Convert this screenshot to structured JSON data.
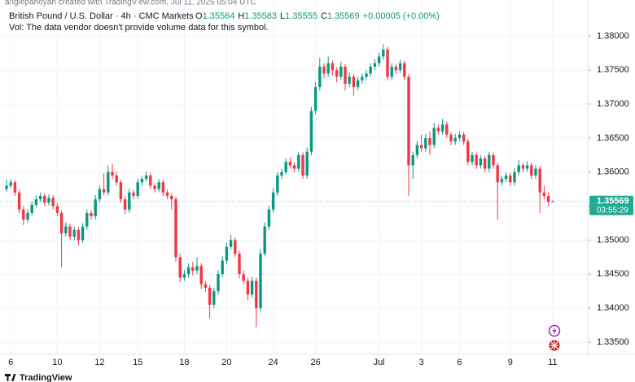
{
  "chart_data": {
    "type": "candlestick",
    "attribution": "anglepanoyan created with TradingView.com, Jul 11, 2025 05:04 UTC",
    "title": "British Pound / U.S. Dollar · 4h · CMC Markets",
    "legend": {
      "items": [
        {
          "key": "O",
          "value": "1.35564"
        },
        {
          "key": "H",
          "value": "1.35583"
        },
        {
          "key": "L",
          "value": "1.35555"
        },
        {
          "key": "C",
          "value": "1.35569"
        }
      ],
      "change": "+0.00005 (+0.00%)"
    },
    "volume_note": "Vol: The data vendor doesn't provide volume data for this symbol.",
    "brand": "TradingView",
    "up_color": "#089981",
    "down_color": "#f23645",
    "last_price": {
      "value": 1.35569,
      "label": "1.35569",
      "countdown": "03:55:29",
      "color": "#22ab94"
    },
    "ylim": [
      1.3332,
      1.3853
    ],
    "yticks": [
      {
        "value": 1.335,
        "label": "1.33500"
      },
      {
        "value": 1.34,
        "label": "1.34000"
      },
      {
        "value": 1.345,
        "label": "1.34500"
      },
      {
        "value": 1.35,
        "label": "1.35000"
      },
      {
        "value": 1.355,
        "label": "1.35500"
      },
      {
        "value": 1.36,
        "label": "1.36000"
      },
      {
        "value": 1.365,
        "label": "1.36500"
      },
      {
        "value": 1.37,
        "label": "1.37000"
      },
      {
        "value": 1.375,
        "label": "1.37500"
      },
      {
        "value": 1.38,
        "label": "1.38000"
      }
    ],
    "grid": true,
    "categories": [
      null,
      "6",
      null,
      null,
      null,
      null,
      null,
      null,
      null,
      null,
      null,
      null,
      "10",
      null,
      null,
      null,
      null,
      null,
      null,
      null,
      null,
      null,
      "12",
      null,
      null,
      null,
      null,
      null,
      null,
      null,
      null,
      "15",
      null,
      null,
      null,
      null,
      null,
      null,
      null,
      null,
      null,
      null,
      "18",
      null,
      null,
      null,
      null,
      null,
      null,
      null,
      null,
      null,
      "20",
      null,
      null,
      null,
      null,
      null,
      null,
      null,
      null,
      null,
      null,
      "24",
      null,
      null,
      null,
      null,
      null,
      null,
      null,
      null,
      null,
      "26",
      null,
      null,
      null,
      null,
      null,
      null,
      null,
      null,
      null,
      null,
      null,
      null,
      null,
      null,
      "Jul",
      null,
      null,
      null,
      null,
      null,
      null,
      null,
      null,
      null,
      "3",
      null,
      null,
      null,
      null,
      null,
      null,
      null,
      null,
      "6",
      null,
      null,
      null,
      null,
      null,
      null,
      null,
      null,
      null,
      null,
      null,
      "9",
      null,
      null,
      null,
      null,
      null,
      null,
      null,
      null,
      null,
      "11"
    ],
    "ohlc": [
      [
        1.3575,
        1.3589,
        1.3571,
        1.358
      ],
      [
        1.358,
        1.359,
        1.3576,
        1.3585
      ],
      [
        1.3585,
        1.3588,
        1.3565,
        1.357
      ],
      [
        1.357,
        1.3574,
        1.354,
        1.3545
      ],
      [
        1.3545,
        1.355,
        1.3522,
        1.353
      ],
      [
        1.353,
        1.3545,
        1.3526,
        1.354
      ],
      [
        1.354,
        1.3557,
        1.3536,
        1.3552
      ],
      [
        1.3552,
        1.3566,
        1.3548,
        1.356
      ],
      [
        1.356,
        1.357,
        1.3556,
        1.3565
      ],
      [
        1.3565,
        1.3569,
        1.355,
        1.3555
      ],
      [
        1.3555,
        1.3567,
        1.3551,
        1.3562
      ],
      [
        1.3562,
        1.3566,
        1.3545,
        1.355
      ],
      [
        1.355,
        1.3554,
        1.3535,
        1.354
      ],
      [
        1.354,
        1.3544,
        1.346,
        1.351
      ],
      [
        1.351,
        1.3526,
        1.3505,
        1.352
      ],
      [
        1.352,
        1.3524,
        1.35,
        1.3505
      ],
      [
        1.3505,
        1.352,
        1.35,
        1.3515
      ],
      [
        1.3515,
        1.3519,
        1.3492,
        1.35
      ],
      [
        1.35,
        1.3525,
        1.3496,
        1.352
      ],
      [
        1.352,
        1.3545,
        1.3515,
        1.354
      ],
      [
        1.354,
        1.3544,
        1.353,
        1.3535
      ],
      [
        1.3535,
        1.3566,
        1.353,
        1.356
      ],
      [
        1.356,
        1.358,
        1.3556,
        1.3575
      ],
      [
        1.3575,
        1.3598,
        1.3566,
        1.357
      ],
      [
        1.357,
        1.361,
        1.3566,
        1.36
      ],
      [
        1.36,
        1.3612,
        1.359,
        1.3595
      ],
      [
        1.3595,
        1.36,
        1.358,
        1.3585
      ],
      [
        1.3585,
        1.3589,
        1.3555,
        1.356
      ],
      [
        1.356,
        1.3565,
        1.3538,
        1.3545
      ],
      [
        1.3545,
        1.3576,
        1.354,
        1.357
      ],
      [
        1.357,
        1.3574,
        1.356,
        1.3565
      ],
      [
        1.3565,
        1.359,
        1.3561,
        1.3585
      ],
      [
        1.3585,
        1.3595,
        1.358,
        1.359
      ],
      [
        1.359,
        1.3601,
        1.3586,
        1.3595
      ],
      [
        1.3595,
        1.3599,
        1.3575,
        1.358
      ],
      [
        1.358,
        1.3584,
        1.357,
        1.3575
      ],
      [
        1.3575,
        1.359,
        1.3571,
        1.3585
      ],
      [
        1.3585,
        1.3589,
        1.3565,
        1.357
      ],
      [
        1.357,
        1.3574,
        1.356,
        1.3565
      ],
      [
        1.3565,
        1.3569,
        1.3545,
        1.356
      ],
      [
        1.356,
        1.3564,
        1.3468,
        1.3475
      ],
      [
        1.3475,
        1.348,
        1.3438,
        1.3445
      ],
      [
        1.3445,
        1.3456,
        1.344,
        1.345
      ],
      [
        1.345,
        1.3466,
        1.3445,
        1.346
      ],
      [
        1.346,
        1.3468,
        1.3448,
        1.3455
      ],
      [
        1.3455,
        1.3475,
        1.345,
        1.3462
      ],
      [
        1.3462,
        1.3466,
        1.3428,
        1.3435
      ],
      [
        1.3435,
        1.344,
        1.3424,
        1.343
      ],
      [
        1.343,
        1.3434,
        1.3385,
        1.3405
      ],
      [
        1.3405,
        1.343,
        1.34,
        1.3425
      ],
      [
        1.3425,
        1.3456,
        1.342,
        1.345
      ],
      [
        1.345,
        1.3476,
        1.3446,
        1.347
      ],
      [
        1.347,
        1.3496,
        1.3465,
        1.349
      ],
      [
        1.349,
        1.3508,
        1.3486,
        1.35
      ],
      [
        1.35,
        1.3504,
        1.3475,
        1.348
      ],
      [
        1.348,
        1.3484,
        1.3444,
        1.345
      ],
      [
        1.345,
        1.3455,
        1.3435,
        1.344
      ],
      [
        1.344,
        1.3445,
        1.3412,
        1.342
      ],
      [
        1.342,
        1.3446,
        1.3415,
        1.344
      ],
      [
        1.344,
        1.3445,
        1.3372,
        1.34
      ],
      [
        1.34,
        1.3486,
        1.3395,
        1.348
      ],
      [
        1.348,
        1.3526,
        1.3476,
        1.352
      ],
      [
        1.352,
        1.355,
        1.3515,
        1.3545
      ],
      [
        1.3545,
        1.3576,
        1.354,
        1.357
      ],
      [
        1.357,
        1.36,
        1.3565,
        1.3595
      ],
      [
        1.3595,
        1.3605,
        1.359,
        1.36
      ],
      [
        1.36,
        1.362,
        1.3596,
        1.3615
      ],
      [
        1.3615,
        1.3622,
        1.3605,
        1.361
      ],
      [
        1.361,
        1.3614,
        1.36,
        1.3605
      ],
      [
        1.3605,
        1.363,
        1.36,
        1.3625
      ],
      [
        1.3625,
        1.3629,
        1.359,
        1.3595
      ],
      [
        1.3595,
        1.3636,
        1.359,
        1.363
      ],
      [
        1.363,
        1.3696,
        1.3625,
        1.369
      ],
      [
        1.369,
        1.3732,
        1.3685,
        1.3725
      ],
      [
        1.3725,
        1.3768,
        1.372,
        1.3755
      ],
      [
        1.3755,
        1.376,
        1.3738,
        1.3745
      ],
      [
        1.3745,
        1.377,
        1.374,
        1.376
      ],
      [
        1.376,
        1.3764,
        1.3742,
        1.375
      ],
      [
        1.375,
        1.3754,
        1.3732,
        1.374
      ],
      [
        1.374,
        1.3762,
        1.3735,
        1.3755
      ],
      [
        1.3755,
        1.3759,
        1.372,
        1.373
      ],
      [
        1.373,
        1.3746,
        1.3725,
        1.374
      ],
      [
        1.374,
        1.3744,
        1.3712,
        1.3725
      ],
      [
        1.3725,
        1.374,
        1.372,
        1.3735
      ],
      [
        1.3735,
        1.3745,
        1.373,
        1.374
      ],
      [
        1.374,
        1.375,
        1.3735,
        1.3745
      ],
      [
        1.3745,
        1.376,
        1.374,
        1.3755
      ],
      [
        1.3755,
        1.3766,
        1.375,
        1.376
      ],
      [
        1.376,
        1.3776,
        1.3755,
        1.377
      ],
      [
        1.377,
        1.3788,
        1.3765,
        1.378
      ],
      [
        1.378,
        1.3784,
        1.3735,
        1.374
      ],
      [
        1.374,
        1.376,
        1.3735,
        1.3755
      ],
      [
        1.3755,
        1.3759,
        1.3745,
        1.375
      ],
      [
        1.375,
        1.3765,
        1.3746,
        1.376
      ],
      [
        1.376,
        1.3764,
        1.3735,
        1.374
      ],
      [
        1.374,
        1.3744,
        1.3565,
        1.361
      ],
      [
        1.361,
        1.363,
        1.359,
        1.3625
      ],
      [
        1.3625,
        1.3646,
        1.362,
        1.364
      ],
      [
        1.364,
        1.3655,
        1.363,
        1.3635
      ],
      [
        1.3635,
        1.3656,
        1.363,
        1.365
      ],
      [
        1.365,
        1.366,
        1.3625,
        1.364
      ],
      [
        1.364,
        1.3672,
        1.3635,
        1.3665
      ],
      [
        1.3665,
        1.367,
        1.3655,
        1.366
      ],
      [
        1.366,
        1.3678,
        1.3655,
        1.367
      ],
      [
        1.367,
        1.3674,
        1.365,
        1.3655
      ],
      [
        1.3655,
        1.3659,
        1.364,
        1.3645
      ],
      [
        1.3645,
        1.3656,
        1.364,
        1.365
      ],
      [
        1.365,
        1.366,
        1.3646,
        1.3655
      ],
      [
        1.3655,
        1.3659,
        1.364,
        1.3645
      ],
      [
        1.3645,
        1.3649,
        1.361,
        1.3615
      ],
      [
        1.3615,
        1.363,
        1.361,
        1.3625
      ],
      [
        1.3625,
        1.3629,
        1.3605,
        1.361
      ],
      [
        1.361,
        1.3625,
        1.3605,
        1.362
      ],
      [
        1.362,
        1.3624,
        1.36,
        1.3605
      ],
      [
        1.3605,
        1.363,
        1.36,
        1.3625
      ],
      [
        1.3625,
        1.3629,
        1.3605,
        1.361
      ],
      [
        1.361,
        1.3614,
        1.353,
        1.3585
      ],
      [
        1.3585,
        1.3595,
        1.358,
        1.359
      ],
      [
        1.359,
        1.36,
        1.3585,
        1.3595
      ],
      [
        1.3595,
        1.3599,
        1.358,
        1.3585
      ],
      [
        1.3585,
        1.3606,
        1.358,
        1.36
      ],
      [
        1.36,
        1.3618,
        1.3595,
        1.361
      ],
      [
        1.361,
        1.3614,
        1.36,
        1.3605
      ],
      [
        1.3605,
        1.3616,
        1.36,
        1.361
      ],
      [
        1.361,
        1.3614,
        1.359,
        1.3595
      ],
      [
        1.3595,
        1.361,
        1.359,
        1.3605
      ],
      [
        1.3605,
        1.3609,
        1.354,
        1.357
      ],
      [
        1.357,
        1.358,
        1.356,
        1.3565
      ],
      [
        1.3565,
        1.357,
        1.355,
        1.3556
      ],
      [
        1.35564,
        1.35583,
        1.35555,
        1.35569
      ]
    ]
  }
}
